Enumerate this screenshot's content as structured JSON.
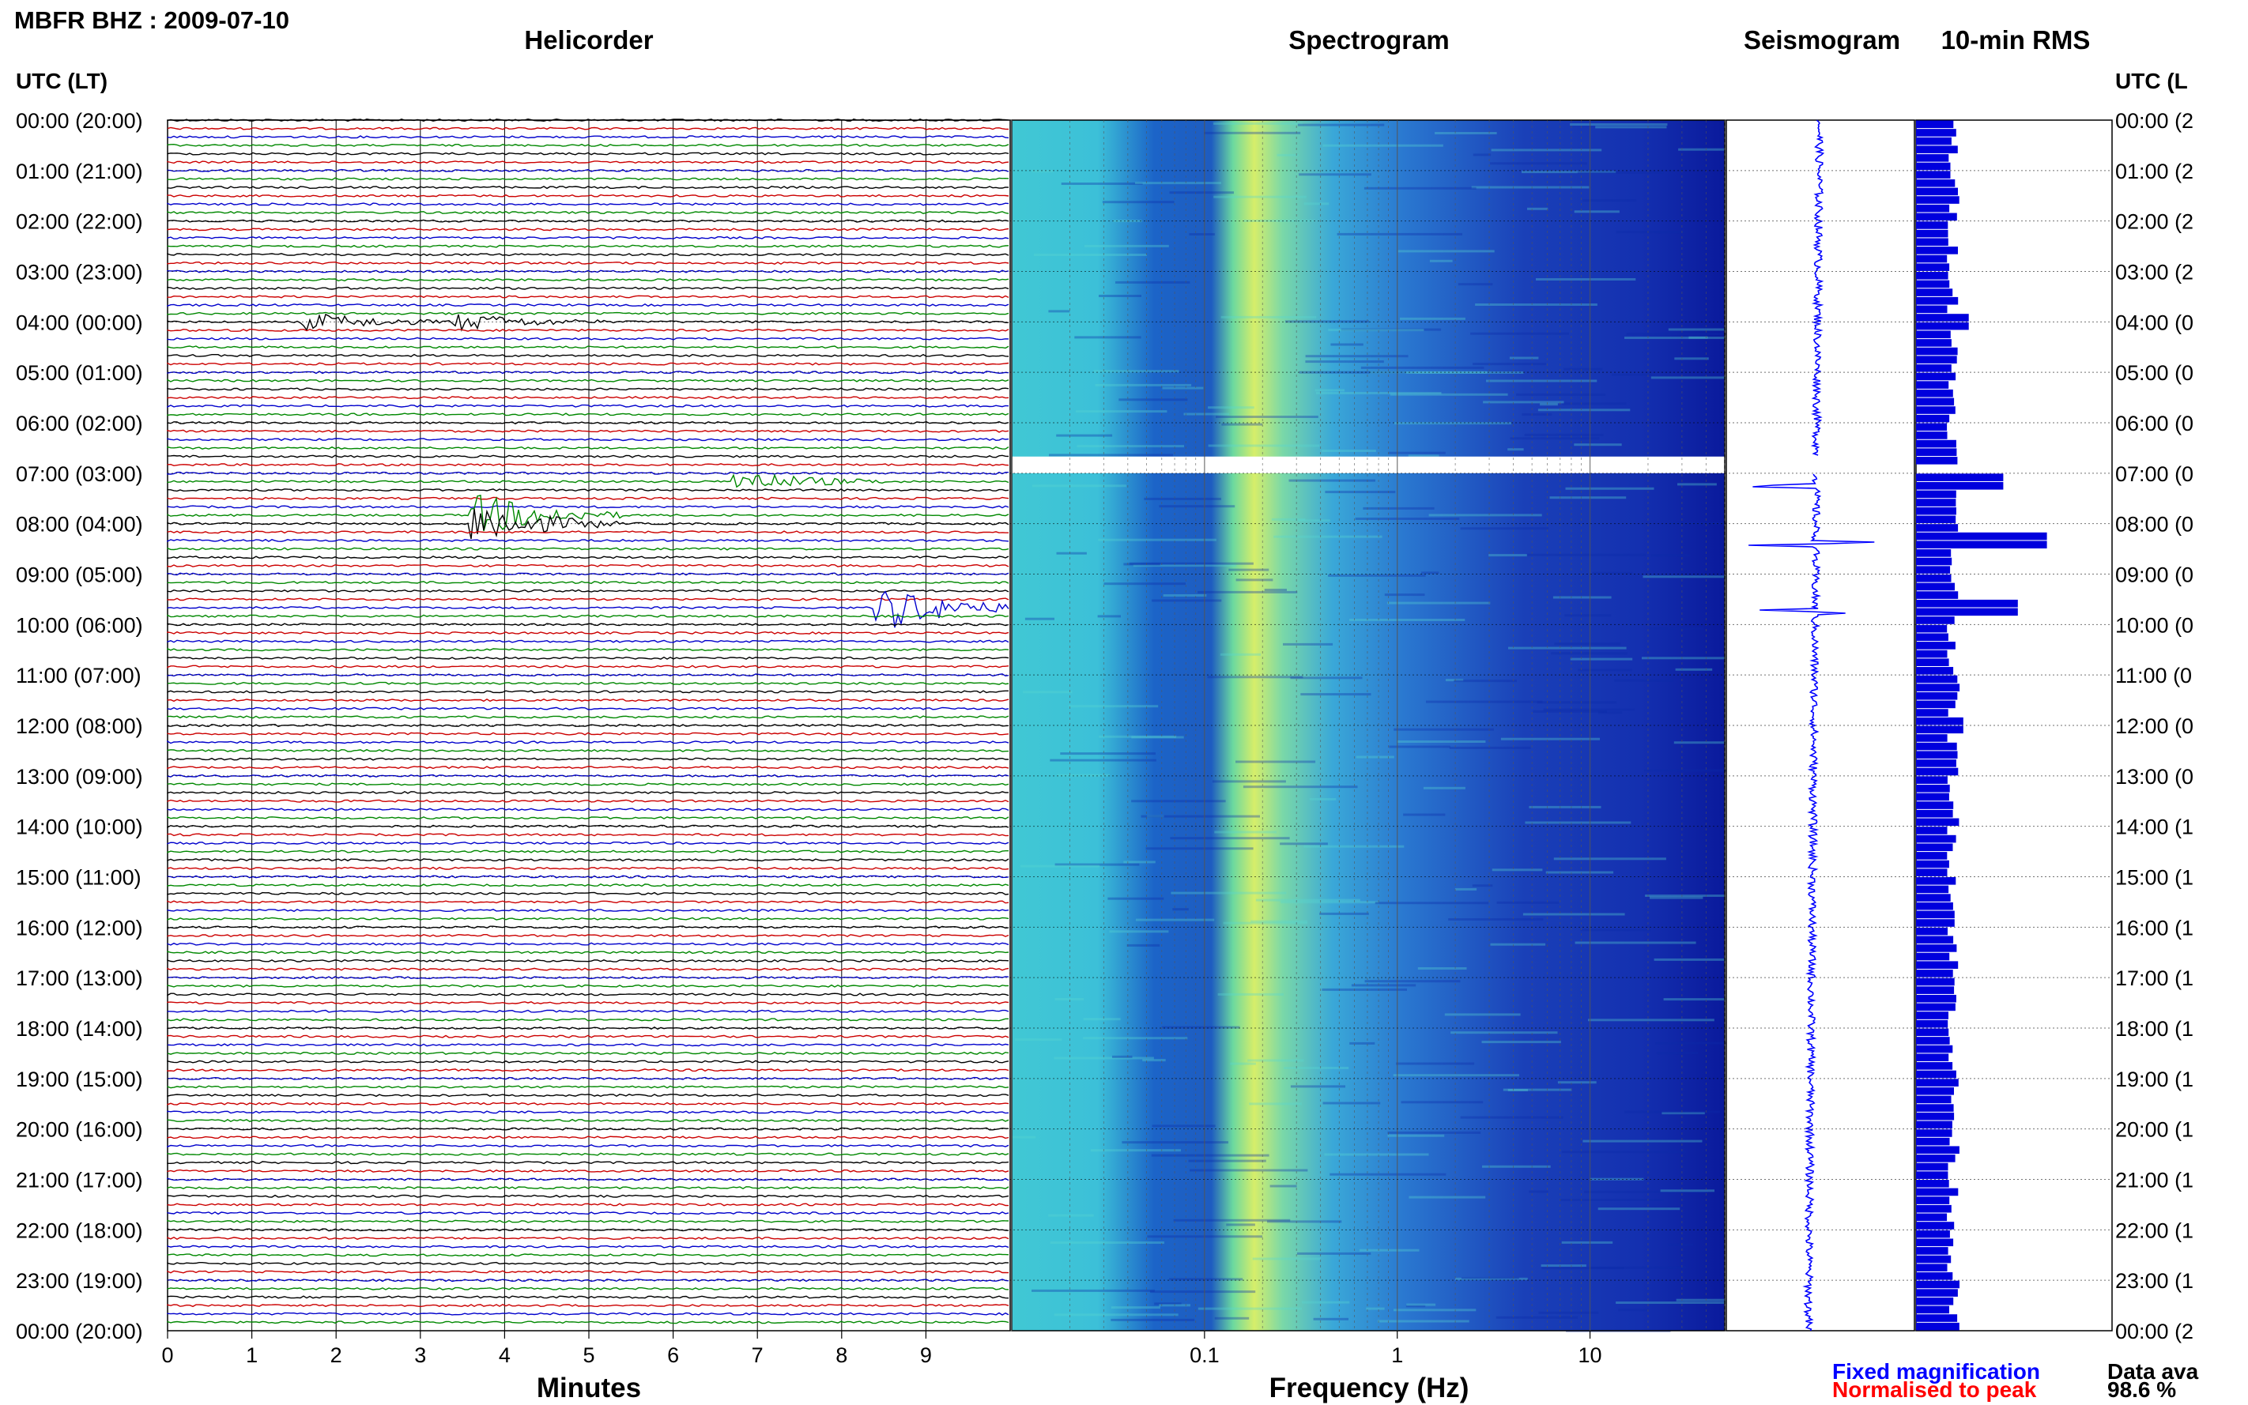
{
  "title": "MBFR BHZ : 2009-07-10",
  "panels": {
    "helicorder": "Helicorder",
    "spectrogram": "Spectrogram",
    "seismogram": "Seismogram",
    "rms": "10-min RMS"
  },
  "axis_labels": {
    "minutes": "Minutes",
    "frequency": "Frequency (Hz)",
    "time_left": "UTC (LT)",
    "time_right": "UTC (L"
  },
  "time_ticks_left": [
    "00:00 (20:00)",
    "01:00 (21:00)",
    "02:00 (22:00)",
    "03:00 (23:00)",
    "04:00 (00:00)",
    "05:00 (01:00)",
    "06:00 (02:00)",
    "07:00 (03:00)",
    "08:00 (04:00)",
    "09:00 (05:00)",
    "10:00 (06:00)",
    "11:00 (07:00)",
    "12:00 (08:00)",
    "13:00 (09:00)",
    "14:00 (10:00)",
    "15:00 (11:00)",
    "16:00 (12:00)",
    "17:00 (13:00)",
    "18:00 (14:00)",
    "19:00 (15:00)",
    "20:00 (16:00)",
    "21:00 (17:00)",
    "22:00 (18:00)",
    "23:00 (19:00)",
    "00:00 (20:00)"
  ],
  "time_ticks_right": [
    "00:00 (2",
    "01:00 (2",
    "02:00 (2",
    "03:00 (2",
    "04:00 (0",
    "05:00 (0",
    "06:00 (0",
    "07:00 (0",
    "08:00 (0",
    "09:00 (0",
    "10:00 (0",
    "11:00 (0",
    "12:00 (0",
    "13:00 (0",
    "14:00 (1",
    "15:00 (1",
    "16:00 (1",
    "17:00 (1",
    "18:00 (1",
    "19:00 (1",
    "20:00 (1",
    "21:00 (1",
    "22:00 (1",
    "23:00 (1",
    "00:00 (2"
  ],
  "minute_ticks": [
    "0",
    "1",
    "2",
    "3",
    "4",
    "5",
    "6",
    "7",
    "8",
    "9"
  ],
  "frequency_ticks": [
    "0.1",
    "1",
    "10"
  ],
  "legend": {
    "fixed": "Fixed magnification",
    "normalised": "Normalised to peak"
  },
  "availability": {
    "label": "Data ava",
    "value": "98.6 %"
  },
  "colors": {
    "trace_cycle": [
      "#000000",
      "#cc0000",
      "#0000cc",
      "#008800"
    ],
    "seismogram": "#0000ff",
    "rms_bar": "#0000dd",
    "spectrogram_low": "#0a1ea8",
    "spectrogram_mid": "#3fc8d8",
    "spectrogram_high": "#e0f060"
  },
  "chart_data": [
    {
      "type": "line",
      "name_panel": "Helicorder",
      "x_range_minutes": [
        0,
        10
      ],
      "y_range_utc_hours": [
        0,
        24
      ],
      "traces_per_hour": 6,
      "events": [
        {
          "utc_hour": 7.92,
          "minute": 3.8,
          "amplitude": 3.0
        },
        {
          "utc_hour": 9.65,
          "minute": 8.6,
          "amplitude": 3.2
        },
        {
          "utc_hour": 7.1,
          "minute": 6.9,
          "amplitude": 1.5
        },
        {
          "utc_hour": 4.0,
          "minute": 1.8,
          "amplitude": 1.2
        },
        {
          "utc_hour": 4.0,
          "minute": 3.6,
          "amplitude": 1.2
        }
      ]
    },
    {
      "type": "heatmap",
      "name_panel": "Spectrogram",
      "x_scale": "log",
      "x_range_hz": [
        0.01,
        50
      ],
      "y_range_utc_hours": [
        0,
        24
      ],
      "peak_frequency_hz": 0.25,
      "data_gap_utc_hours": [
        6.67,
        7.0
      ]
    },
    {
      "type": "line",
      "name_panel": "Seismogram",
      "y_range_utc_hours": [
        0,
        24
      ],
      "spikes_utc_hours": [
        7.25,
        8.4,
        9.75
      ]
    },
    {
      "type": "bar",
      "name_panel": "10-min RMS",
      "y_range_utc_hours": [
        0,
        24
      ],
      "bins_per_hour": 6,
      "baseline_rms": 1.0,
      "peaks": [
        {
          "utc_hour": 4.0,
          "rms": 1.45
        },
        {
          "utc_hour": 7.17,
          "rms": 2.4
        },
        {
          "utc_hour": 8.33,
          "rms": 3.6
        },
        {
          "utc_hour": 9.67,
          "rms": 2.8
        },
        {
          "utc_hour": 12.0,
          "rms": 1.3
        }
      ]
    }
  ]
}
